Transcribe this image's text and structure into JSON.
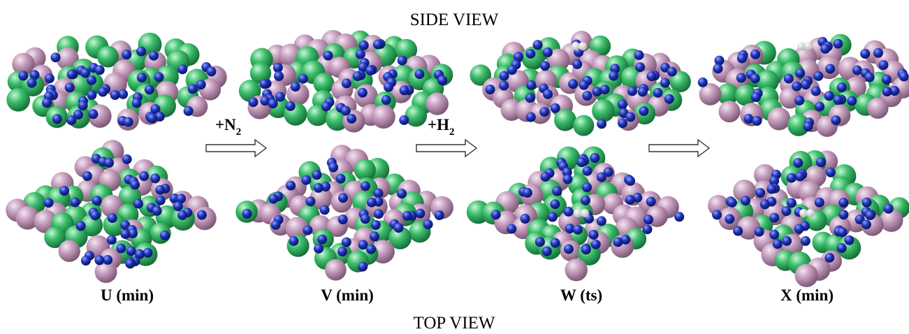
{
  "header": {
    "title": "SIDE VIEW"
  },
  "footer": {
    "title": "TOP VIEW"
  },
  "arrows": [
    {
      "reagent": "+N",
      "subscript": "2"
    },
    {
      "reagent": "+H",
      "subscript": "2"
    }
  ],
  "steps": [
    {
      "label": "U (min)"
    },
    {
      "label": "V (min)"
    },
    {
      "label": "W (ts)"
    },
    {
      "label": "X (min)"
    }
  ]
}
